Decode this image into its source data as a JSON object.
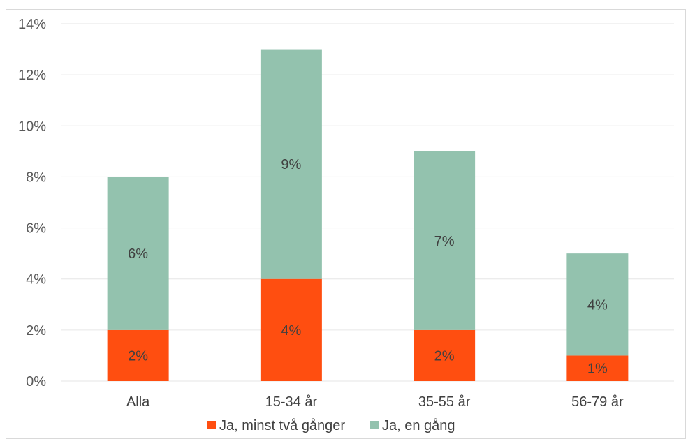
{
  "chart_data": {
    "type": "bar",
    "stacked": true,
    "categories": [
      "Alla",
      "15-34 år",
      "35-55 år",
      "56-79 år"
    ],
    "series": [
      {
        "name": "Ja, minst två gånger",
        "values": [
          2,
          4,
          2,
          1
        ],
        "labels": [
          "2%",
          "4%",
          "2%",
          "1%"
        ],
        "color": "#ff4e10"
      },
      {
        "name": "Ja, en gång",
        "values": [
          6,
          9,
          7,
          4
        ],
        "labels": [
          "6%",
          "9%",
          "7%",
          "4%"
        ],
        "color": "#93c2ae"
      }
    ],
    "y_ticks": [
      "0%",
      "2%",
      "4%",
      "6%",
      "8%",
      "10%",
      "12%",
      "14%"
    ],
    "ylim": [
      0,
      14
    ],
    "grid": true,
    "legend_position": "bottom",
    "gridline_color": "#e6e6e6"
  }
}
